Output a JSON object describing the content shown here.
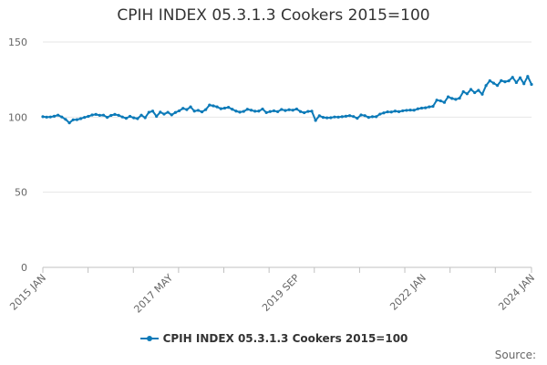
{
  "chart_data": {
    "type": "line",
    "title": "CPIH INDEX 05.3.1.3 Cookers 2015=100",
    "xlabel": "",
    "ylabel": "",
    "ylim": [
      0,
      150
    ],
    "y_ticks": [
      "0",
      "50",
      "100",
      "150"
    ],
    "x_tick_labels": [
      "2015 JAN",
      "2017 MAY",
      "2019 SEP",
      "2022 JAN",
      "2024 JAN"
    ],
    "x_range": [
      "2015-01",
      "2024-01"
    ],
    "grid": true,
    "legend_position": "bottom",
    "series_color": "#0c7ab8",
    "series": [
      {
        "name": "CPIH INDEX 05.3.1.3 Cookers 2015=100",
        "values": [
          100.3,
          100.0,
          100.1,
          100.6,
          101.3,
          100.1,
          98.5,
          96.2,
          98.2,
          98.3,
          99.0,
          99.8,
          100.5,
          101.4,
          101.8,
          101.2,
          101.3,
          99.8,
          101.1,
          101.8,
          101.2,
          100.1,
          99.2,
          100.5,
          99.5,
          99.0,
          101.3,
          99.6,
          103.2,
          104.0,
          100.5,
          103.3,
          102.0,
          103.2,
          101.5,
          103.1,
          104.2,
          105.8,
          105.0,
          106.8,
          104.0,
          104.5,
          103.5,
          105.0,
          108.0,
          107.5,
          106.8,
          105.6,
          106.0,
          106.5,
          105.2,
          104.0,
          103.3,
          103.8,
          105.2,
          104.6,
          103.9,
          104.0,
          105.4,
          103.0,
          103.7,
          104.2,
          103.6,
          105.1,
          104.4,
          104.9,
          104.6,
          105.4,
          103.7,
          102.9,
          103.8,
          103.9,
          97.8,
          100.9,
          99.8,
          99.5,
          99.6,
          100.1,
          100.0,
          100.3,
          100.6,
          101.0,
          100.4,
          99.2,
          101.4,
          101.0,
          99.8,
          100.3,
          100.3,
          102.0,
          102.8,
          103.5,
          103.4,
          104.0,
          103.6,
          104.2,
          104.5,
          104.7,
          104.6,
          105.5,
          106.0,
          106.2,
          106.8,
          107.2,
          111.3,
          110.8,
          109.8,
          113.5,
          112.4,
          111.8,
          112.6,
          116.9,
          115.5,
          118.4,
          116.3,
          117.8,
          115.2,
          121.0,
          124.2,
          122.6,
          121.1,
          124.3,
          123.5,
          124.1,
          126.5,
          123.0,
          126.2,
          122.2,
          127.1,
          121.8
        ]
      }
    ]
  },
  "footer": {
    "source_label": "Source:"
  }
}
